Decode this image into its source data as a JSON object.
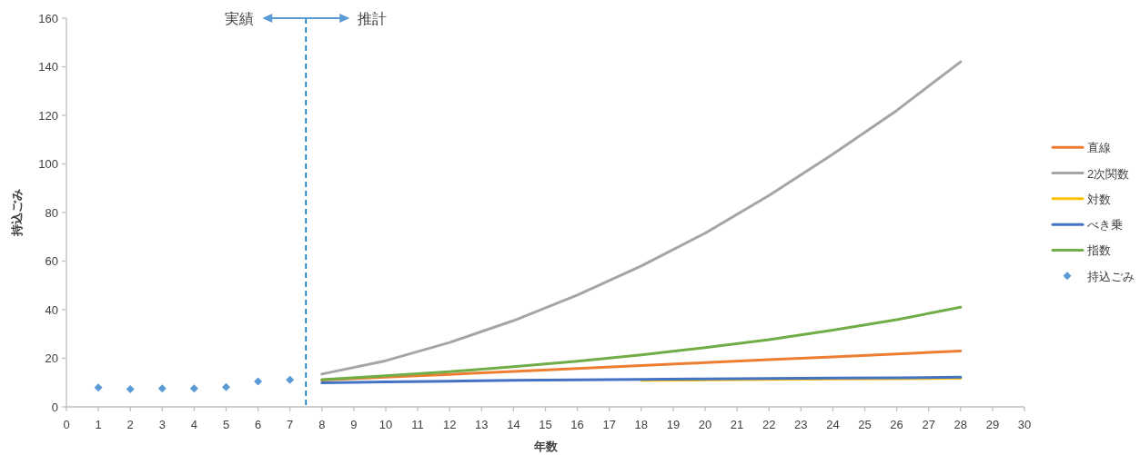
{
  "chart_data": {
    "type": "line",
    "xlabel": "年数",
    "ylabel": "持込ごみ",
    "xlim": [
      0,
      30
    ],
    "xticks": [
      0,
      1,
      2,
      3,
      4,
      5,
      6,
      7,
      8,
      9,
      10,
      11,
      12,
      13,
      14,
      15,
      16,
      17,
      18,
      19,
      20,
      21,
      22,
      23,
      24,
      25,
      26,
      27,
      28,
      29,
      30
    ],
    "ylim": [
      0,
      160
    ],
    "yticks": [
      0,
      20,
      40,
      60,
      80,
      100,
      120,
      140,
      160
    ],
    "legend": "right",
    "series": [
      {
        "name": "直線",
        "color": "#ed7d31",
        "x": [
          8,
          10,
          12,
          14,
          16,
          18,
          20,
          22,
          24,
          26,
          28
        ],
        "values": [
          11.0,
          12.2,
          13.4,
          14.6,
          15.8,
          17.0,
          18.2,
          19.4,
          20.6,
          21.8,
          23.0
        ]
      },
      {
        "name": "2次関数",
        "color": "#a5a5a5",
        "x": [
          8,
          10,
          12,
          14,
          16,
          18,
          20,
          22,
          24,
          26,
          28
        ],
        "values": [
          13.5,
          19,
          26.5,
          35.5,
          46,
          58,
          71.5,
          87,
          104,
          122,
          142
        ]
      },
      {
        "name": "対数",
        "color": "#ffc000",
        "x": [
          18,
          20,
          22,
          24,
          26,
          28
        ],
        "values": [
          10.9,
          11.1,
          11.3,
          11.5,
          11.6,
          11.8
        ]
      },
      {
        "name": "べき乗",
        "color": "#4472c4",
        "x": [
          8,
          10,
          12,
          14,
          16,
          18,
          20,
          22,
          24,
          26,
          28
        ],
        "values": [
          9.9,
          10.3,
          10.6,
          10.9,
          11.1,
          11.3,
          11.5,
          11.7,
          11.9,
          12.0,
          12.2
        ]
      },
      {
        "name": "指数",
        "color": "#70ad47",
        "x": [
          8,
          10,
          12,
          14,
          16,
          18,
          20,
          22,
          24,
          26,
          28
        ],
        "values": [
          11.2,
          12.8,
          14.5,
          16.5,
          18.8,
          21.4,
          24.4,
          27.7,
          31.6,
          35.9,
          41.0
        ]
      },
      {
        "name": "持込ごみ",
        "type": "scatter",
        "marker": "diamond",
        "color": "#5b9bd5",
        "x": [
          1,
          2,
          3,
          4,
          5,
          6,
          7
        ],
        "values": [
          7.9,
          7.3,
          7.6,
          7.6,
          8.1,
          10.5,
          11.1
        ]
      }
    ],
    "ref_lines": [
      {
        "axis": "x",
        "value": 7.5,
        "color": "#0070c0",
        "line_style": "dashed"
      }
    ],
    "annotations": [
      "実績",
      "推計"
    ]
  }
}
